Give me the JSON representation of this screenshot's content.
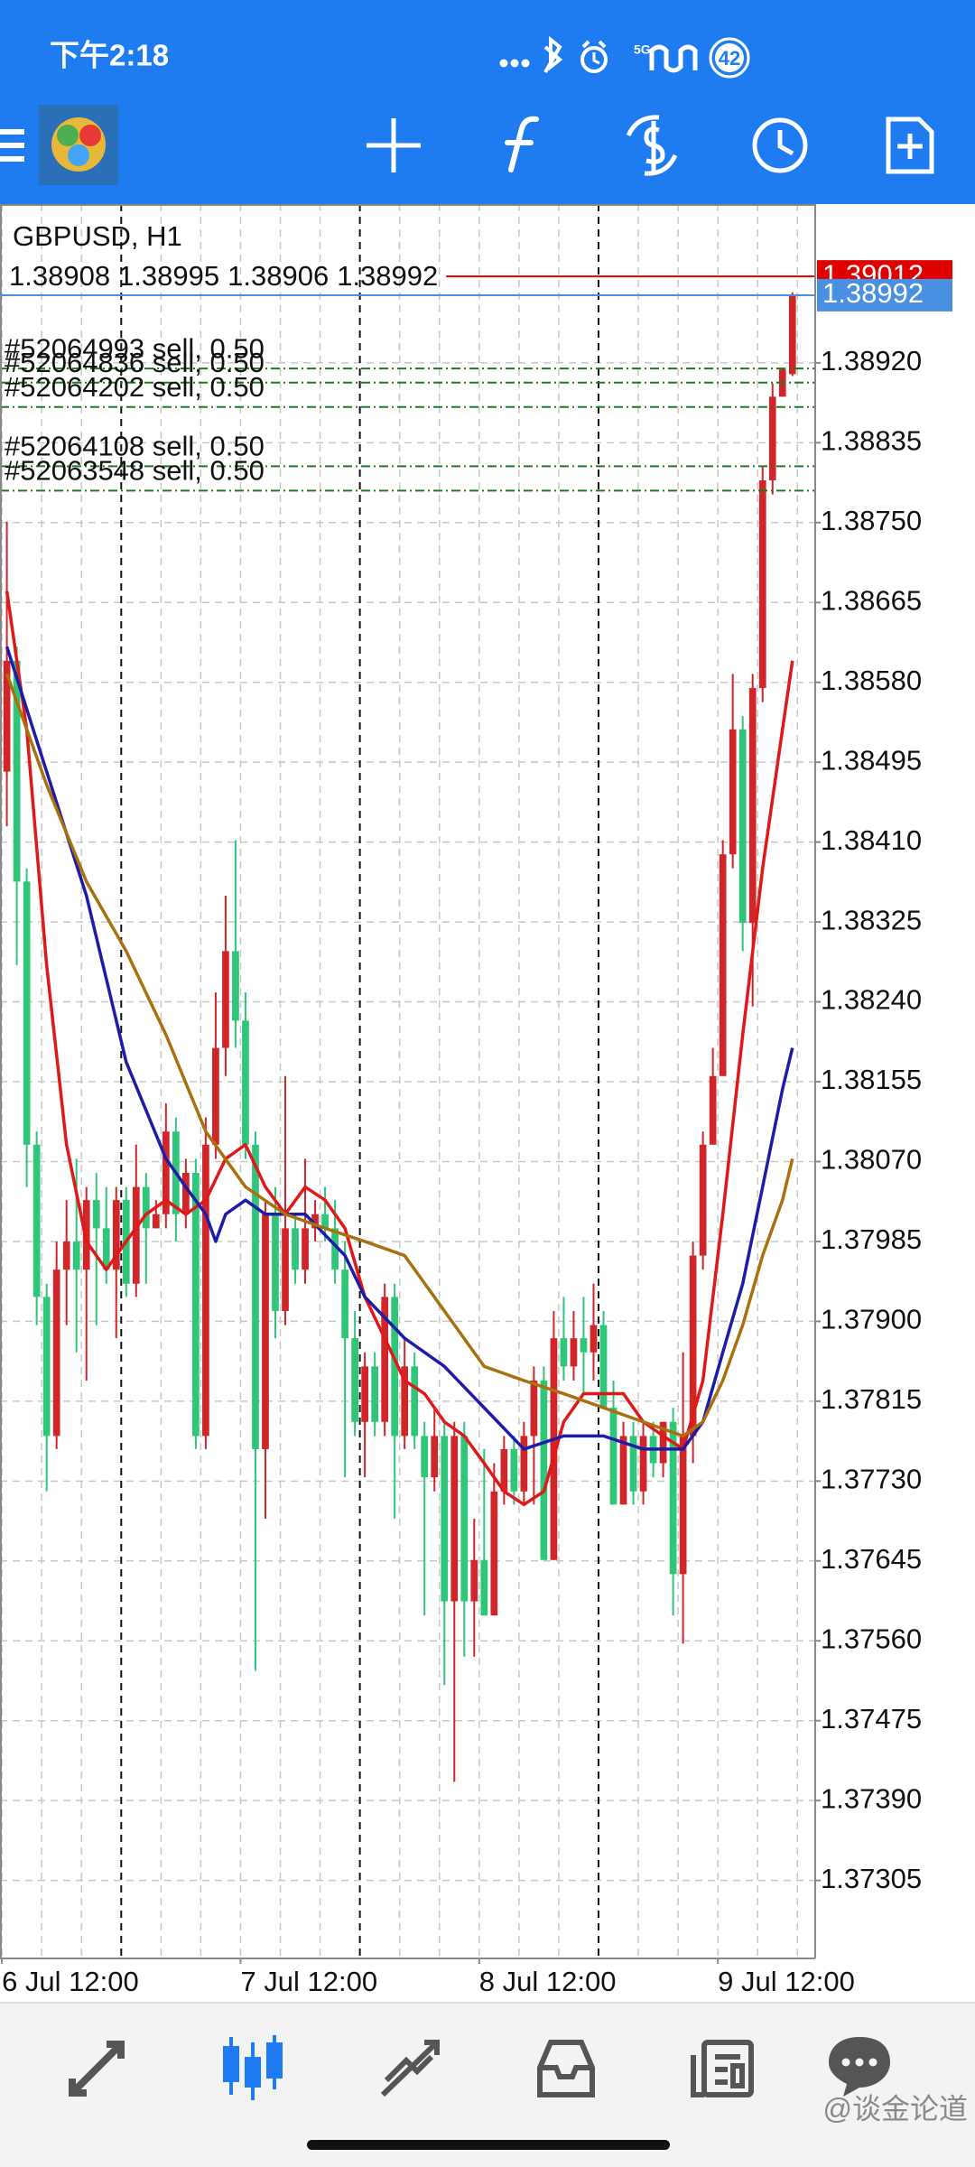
{
  "status_bar": {
    "time": "下午2:18",
    "network": "5G",
    "battery": "42"
  },
  "chart_data": {
    "type": "candlestick",
    "symbol": "GBPUSD, H1",
    "bull_color": "#d0262a",
    "bear_color": "#2fc67a",
    "candles": [
      [
        1.38485,
        1.38751,
        1.38427,
        1.38603
      ],
      [
        1.38603,
        1.38618,
        1.38279,
        1.38368
      ],
      [
        1.38368,
        1.38382,
        1.38043,
        1.38088
      ],
      [
        1.38088,
        1.38102,
        1.37896,
        1.37926
      ],
      [
        1.37926,
        1.3794,
        1.37719,
        1.37778
      ],
      [
        1.37778,
        1.37985,
        1.37764,
        1.37955
      ],
      [
        1.37955,
        1.38029,
        1.37896,
        1.37985
      ],
      [
        1.37985,
        1.38073,
        1.37867,
        1.37955
      ],
      [
        1.37955,
        1.38043,
        1.37837,
        1.38029
      ],
      [
        1.38029,
        1.38058,
        1.37896,
        1.37999
      ],
      [
        1.37999,
        1.38043,
        1.3794,
        1.37955
      ],
      [
        1.37955,
        1.38043,
        1.37882,
        1.38029
      ],
      [
        1.38029,
        1.38043,
        1.37926,
        1.3794
      ],
      [
        1.3794,
        1.38088,
        1.37926,
        1.38043
      ],
      [
        1.38043,
        1.38058,
        1.3794,
        1.37999
      ],
      [
        1.37999,
        1.38029,
        1.37999,
        1.38014
      ],
      [
        1.38014,
        1.38132,
        1.37999,
        1.38102
      ],
      [
        1.38102,
        1.38117,
        1.37985,
        1.38014
      ],
      [
        1.38014,
        1.38073,
        1.37999,
        1.38058
      ],
      [
        1.38058,
        1.38073,
        1.37764,
        1.37778
      ],
      [
        1.37778,
        1.38117,
        1.37764,
        1.38088
      ],
      [
        1.38088,
        1.3825,
        1.38073,
        1.38191
      ],
      [
        1.38191,
        1.38353,
        1.38161,
        1.38294
      ],
      [
        1.38294,
        1.38412,
        1.38191,
        1.3822
      ],
      [
        1.3822,
        1.3825,
        1.38073,
        1.38088
      ],
      [
        1.38088,
        1.38102,
        1.37528,
        1.37764
      ],
      [
        1.37764,
        1.38029,
        1.3769,
        1.38014
      ],
      [
        1.38014,
        1.38043,
        1.37882,
        1.37911
      ],
      [
        1.37911,
        1.38161,
        1.37896,
        1.37999
      ],
      [
        1.37999,
        1.38014,
        1.3794,
        1.37955
      ],
      [
        1.37955,
        1.38073,
        1.3794,
        1.37999
      ],
      [
        1.37999,
        1.38029,
        1.37985,
        1.38014
      ],
      [
        1.38014,
        1.38043,
        1.37985,
        1.37999
      ],
      [
        1.37999,
        1.38029,
        1.3794,
        1.37955
      ],
      [
        1.37955,
        1.37985,
        1.37734,
        1.37882
      ],
      [
        1.37882,
        1.37911,
        1.37778,
        1.37793
      ],
      [
        1.37793,
        1.37867,
        1.37734,
        1.37852
      ],
      [
        1.37852,
        1.37867,
        1.37778,
        1.37793
      ],
      [
        1.37793,
        1.3794,
        1.37778,
        1.37926
      ],
      [
        1.37926,
        1.3794,
        1.3769,
        1.37778
      ],
      [
        1.37778,
        1.37882,
        1.37764,
        1.37852
      ],
      [
        1.37852,
        1.37867,
        1.37764,
        1.37778
      ],
      [
        1.37778,
        1.37793,
        1.37587,
        1.37734
      ],
      [
        1.37734,
        1.37808,
        1.37719,
        1.37778
      ],
      [
        1.37778,
        1.37793,
        1.37513,
        1.37602
      ],
      [
        1.37602,
        1.37793,
        1.3741,
        1.37778
      ],
      [
        1.37778,
        1.37793,
        1.37543,
        1.37602
      ],
      [
        1.37602,
        1.3769,
        1.37543,
        1.37646
      ],
      [
        1.37646,
        1.37764,
        1.37587,
        1.37587
      ],
      [
        1.37587,
        1.37749,
        1.37587,
        1.37719
      ],
      [
        1.37719,
        1.37778,
        1.37705,
        1.37764
      ],
      [
        1.37764,
        1.37778,
        1.37705,
        1.37719
      ],
      [
        1.37719,
        1.37793,
        1.37705,
        1.37778
      ],
      [
        1.37778,
        1.37852,
        1.37705,
        1.37837
      ],
      [
        1.37837,
        1.37852,
        1.37646,
        1.37646
      ],
      [
        1.37646,
        1.37911,
        1.37646,
        1.37882
      ],
      [
        1.37882,
        1.37926,
        1.37837,
        1.37852
      ],
      [
        1.37852,
        1.37911,
        1.37837,
        1.37882
      ],
      [
        1.37882,
        1.37926,
        1.37823,
        1.37867
      ],
      [
        1.37867,
        1.3794,
        1.37837,
        1.37896
      ],
      [
        1.37896,
        1.37911,
        1.37808,
        1.37808
      ],
      [
        1.37808,
        1.37837,
        1.37705,
        1.37705
      ],
      [
        1.37705,
        1.37793,
        1.37705,
        1.37778
      ],
      [
        1.37778,
        1.37793,
        1.37705,
        1.37719
      ],
      [
        1.37719,
        1.37793,
        1.37705,
        1.37778
      ],
      [
        1.37778,
        1.37793,
        1.37734,
        1.37749
      ],
      [
        1.37749,
        1.37793,
        1.37734,
        1.37793
      ],
      [
        1.37793,
        1.37808,
        1.37587,
        1.37631
      ],
      [
        1.37631,
        1.37867,
        1.37557,
        1.37778
      ],
      [
        1.37778,
        1.37985,
        1.37749,
        1.3797
      ],
      [
        1.3797,
        1.38102,
        1.37955,
        1.38088
      ],
      [
        1.38088,
        1.38191,
        1.38088,
        1.38161
      ],
      [
        1.38161,
        1.38412,
        1.38161,
        1.38397
      ],
      [
        1.38397,
        1.38589,
        1.38382,
        1.3853
      ],
      [
        1.3853,
        1.38544,
        1.38294,
        1.38324
      ],
      [
        1.38324,
        1.38589,
        1.38235,
        1.38574
      ],
      [
        1.38574,
        1.3881,
        1.38559,
        1.38795
      ],
      [
        1.38795,
        1.38898,
        1.3878,
        1.38884
      ],
      [
        1.38884,
        1.38913,
        1.38884,
        1.38913
      ],
      [
        1.38908,
        1.38995,
        1.38906,
        1.38992
      ]
    ],
    "indicators": [
      {
        "color": "#e01818",
        "x": [
          0,
          2,
          4,
          6,
          8,
          10,
          12,
          14,
          16,
          18,
          20,
          22,
          24,
          26,
          28,
          30,
          32,
          34,
          36,
          38,
          40,
          42,
          44,
          46,
          48,
          50,
          52,
          54,
          56,
          58,
          60,
          62,
          64,
          66,
          68,
          70,
          72,
          74,
          76,
          78,
          79
        ],
        "values": [
          1.38677,
          1.3853,
          1.38279,
          1.38088,
          1.37985,
          1.37955,
          1.37985,
          1.38014,
          1.38029,
          1.38014,
          1.38029,
          1.38073,
          1.38088,
          1.38043,
          1.38014,
          1.38043,
          1.38029,
          1.37999,
          1.37926,
          1.37882,
          1.37837,
          1.37823,
          1.37793,
          1.37778,
          1.37749,
          1.37719,
          1.37705,
          1.37719,
          1.37793,
          1.37823,
          1.37823,
          1.37823,
          1.37793,
          1.37778,
          1.37764,
          1.37837,
          1.38014,
          1.38205,
          1.38382,
          1.3853,
          1.38603
        ]
      },
      {
        "color": "#1c1ca8",
        "x": [
          0,
          4,
          8,
          12,
          16,
          18,
          20,
          21,
          22,
          24,
          26,
          30,
          34,
          36,
          40,
          44,
          48,
          52,
          56,
          60,
          64,
          68,
          70,
          72,
          74,
          76,
          78,
          79
        ],
        "values": [
          1.38618,
          1.38485,
          1.38353,
          1.38176,
          1.38073,
          1.38043,
          1.38014,
          1.37985,
          1.38014,
          1.38029,
          1.38014,
          1.38014,
          1.3797,
          1.37926,
          1.37882,
          1.37852,
          1.37808,
          1.37764,
          1.37778,
          1.37778,
          1.37764,
          1.37764,
          1.37793,
          1.37867,
          1.3794,
          1.38043,
          1.38147,
          1.38191
        ]
      },
      {
        "color": "#a8700f",
        "x": [
          0,
          4,
          8,
          12,
          16,
          20,
          24,
          28,
          32,
          36,
          40,
          44,
          48,
          52,
          56,
          60,
          64,
          68,
          70,
          72,
          74,
          76,
          78,
          79
        ],
        "values": [
          1.38589,
          1.38471,
          1.38368,
          1.38294,
          1.38205,
          1.38102,
          1.38043,
          1.38014,
          1.37999,
          1.37985,
          1.3797,
          1.37911,
          1.37852,
          1.37837,
          1.37823,
          1.37808,
          1.37793,
          1.37778,
          1.37793,
          1.37837,
          1.37896,
          1.3797,
          1.38029,
          1.38073
        ]
      }
    ],
    "orders": [
      {
        "label": "#52064993 sell, 0.50",
        "price": 1.38914
      },
      {
        "label": "#52064836 sell, 0.50",
        "price": 1.38899
      },
      {
        "label": "#52064202 sell, 0.50",
        "price": 1.38873
      },
      {
        "label": "#52064108 sell, 0.50",
        "price": 1.3881
      },
      {
        "label": "#52063548 sell, 0.50",
        "price": 1.38784
      }
    ],
    "order_color": "#1e7a1e",
    "bid_color": "#4a90e2",
    "ask": 1.39012,
    "ask_color": "#e00000",
    "ylim": [
      1.37222,
      1.39089
    ],
    "yticks": [
      {
        "value": 1.3892,
        "label": "1.38920"
      },
      1.38835,
      {
        "value": 1.3875,
        "label": "1.38750"
      },
      1.38665,
      {
        "value": 1.3858,
        "label": "1.38580"
      },
      1.38495,
      {
        "value": 1.3841,
        "label": "1.38410"
      },
      1.38325,
      {
        "value": 1.3824,
        "label": "1.38240"
      },
      1.38155,
      {
        "value": 1.3807,
        "label": "1.38070"
      },
      1.37985,
      {
        "value": 1.379,
        "label": "1.37900"
      },
      1.37815,
      {
        "value": 1.3773,
        "label": "1.37730"
      },
      1.37645,
      {
        "value": 1.3756,
        "label": "1.37560"
      },
      1.37475,
      {
        "value": 1.3739,
        "label": "1.37390"
      },
      1.37305
    ],
    "xlim": [
      -0.69,
      81.29
    ],
    "xticks": [
      {
        "value": -0.5,
        "label": "6 Jul 12:00"
      },
      {
        "value": 23.5,
        "label": "7 Jul 12:00"
      },
      {
        "value": 47.5,
        "label": "8 Jul 12:00"
      },
      {
        "value": 71.5,
        "label": "9 Jul 12:00"
      }
    ],
    "xgrid": [
      -0.5,
      3.5,
      7.5,
      11.5,
      15.5,
      19.5,
      23.5,
      27.5,
      31.5,
      35.5,
      39.5,
      43.5,
      47.5,
      51.5,
      55.5,
      59.5,
      63.5,
      67.5,
      71.5,
      75.5,
      79.5
    ],
    "separators": [
      11.5,
      35.5,
      59.5
    ],
    "grid": true
  },
  "watermark": "@谈金论道"
}
